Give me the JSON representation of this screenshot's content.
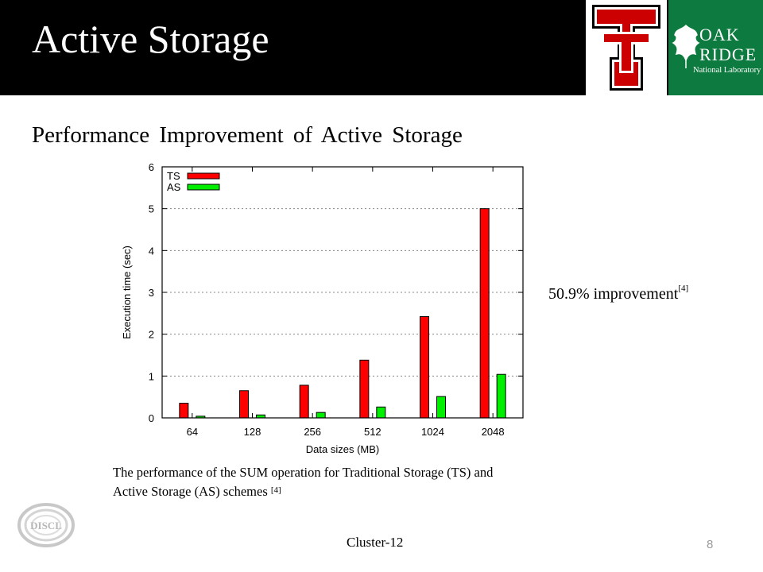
{
  "slide": {
    "title": "Active Storage",
    "subtitle": "Performance Improvement of Active Storage",
    "improvement_text": "50.9% improvement",
    "improvement_ref": "[4]",
    "caption_text": "The performance of the SUM operation for Traditional Storage (TS) and Active Storage (AS) schemes ",
    "caption_ref": "[4]",
    "footer": "Cluster-12",
    "page_number": "8",
    "logos": {
      "ornl_oak": "OAK",
      "ornl_ridge": "RIDGE",
      "ornl_lab": "National Laboratory",
      "discl": "DISCL"
    }
  },
  "colors": {
    "header_bg": "#000000",
    "ornl_green": "#0d7a3f",
    "tt_red": "#cc0000",
    "ts_red": "#ff0000",
    "as_green": "#00ee00"
  },
  "chart_data": {
    "type": "bar",
    "categories": [
      "64",
      "128",
      "256",
      "512",
      "1024",
      "2048"
    ],
    "series": [
      {
        "name": "TS",
        "values": [
          0.35,
          0.65,
          0.78,
          1.38,
          2.42,
          5.0
        ],
        "color": "#ff0000"
      },
      {
        "name": "AS",
        "values": [
          0.04,
          0.07,
          0.13,
          0.26,
          0.51,
          1.04
        ],
        "color": "#00ee00"
      }
    ],
    "xlabel": "Data sizes (MB)",
    "ylabel": "Execution time (sec)",
    "ylim": [
      0,
      6
    ],
    "yticks": [
      0,
      1,
      2,
      3,
      4,
      5,
      6
    ],
    "grid": true,
    "legend_position": "top-left"
  }
}
